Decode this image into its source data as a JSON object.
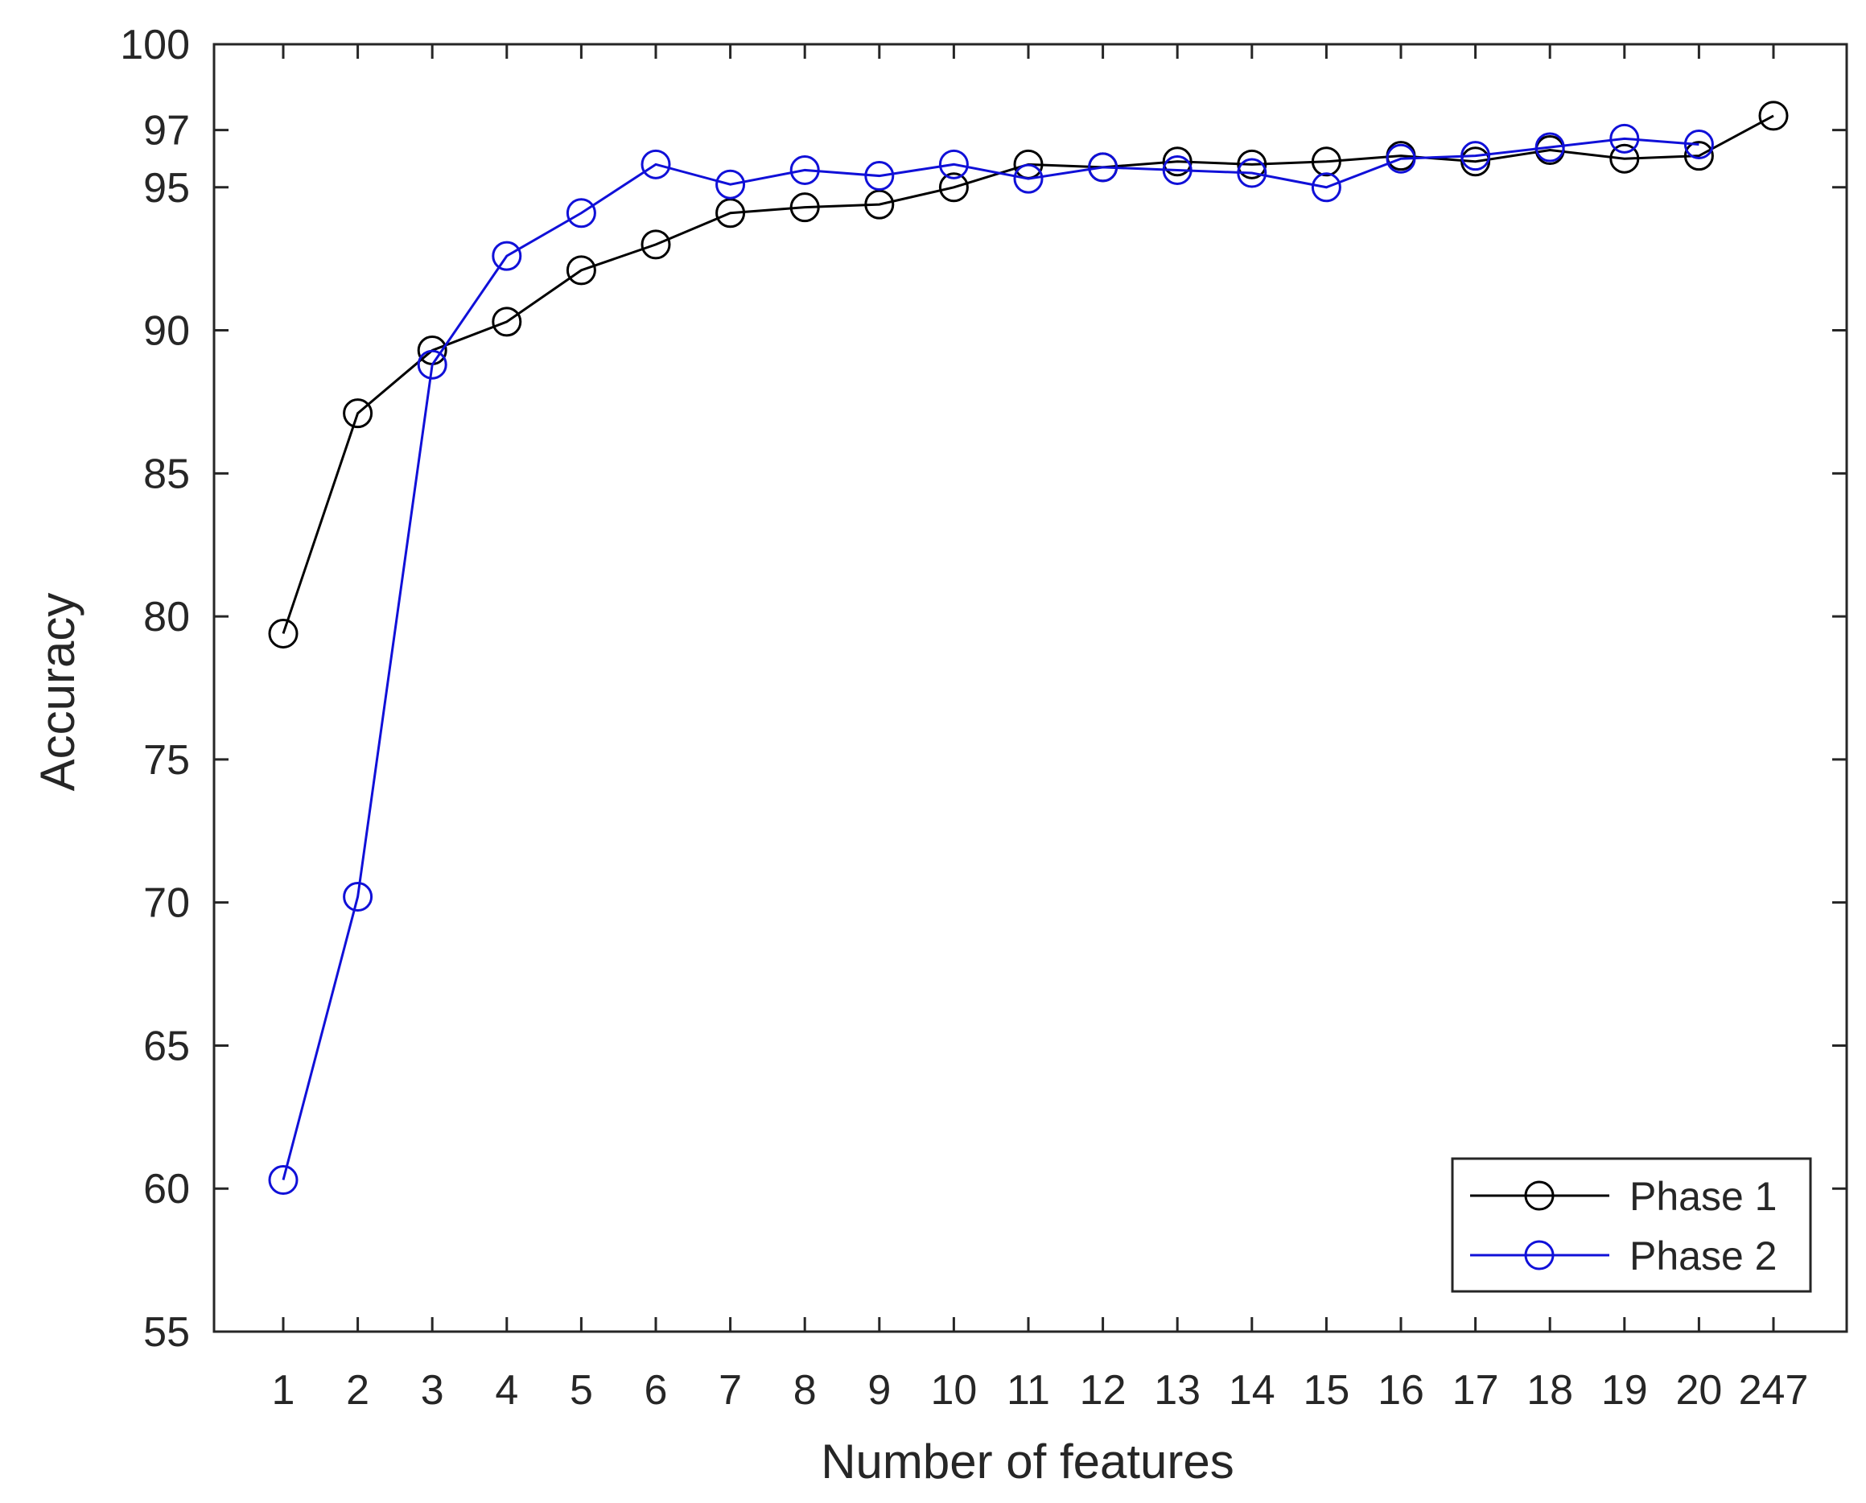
{
  "chart_data": {
    "type": "line",
    "title": "",
    "xlabel": "Number of features",
    "ylabel": "Accuracy",
    "categories": [
      "1",
      "2",
      "3",
      "4",
      "5",
      "6",
      "7",
      "8",
      "9",
      "10",
      "11",
      "12",
      "13",
      "14",
      "15",
      "16",
      "17",
      "18",
      "19",
      "20",
      "247"
    ],
    "y_ticks": [
      55,
      60,
      65,
      70,
      75,
      80,
      85,
      90,
      95,
      97,
      100
    ],
    "ylim": [
      55,
      100
    ],
    "grid": false,
    "legend_position": "bottom-right",
    "series": [
      {
        "name": "Phase 1",
        "color": "#000000",
        "marker": "circle",
        "values": [
          79.4,
          87.1,
          89.3,
          90.3,
          92.1,
          93.0,
          94.1,
          94.3,
          94.4,
          95.0,
          95.8,
          95.7,
          95.9,
          95.8,
          95.9,
          96.1,
          95.9,
          96.3,
          96.0,
          96.1,
          97.5
        ]
      },
      {
        "name": "Phase 2",
        "color": "#1010d8",
        "marker": "circle",
        "values": [
          60.3,
          70.2,
          88.8,
          92.6,
          94.1,
          95.8,
          95.1,
          95.6,
          95.4,
          95.8,
          95.3,
          95.7,
          95.6,
          95.5,
          95.0,
          96.0,
          96.1,
          96.4,
          96.7,
          96.5,
          null
        ]
      }
    ]
  }
}
